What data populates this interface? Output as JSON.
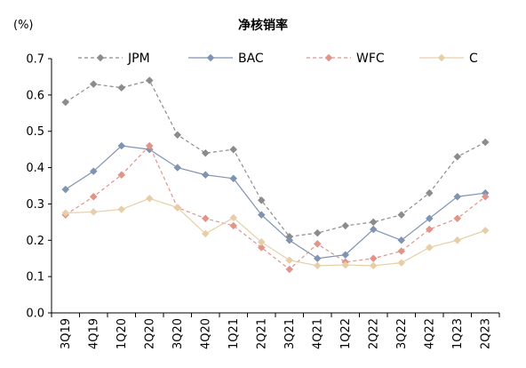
{
  "chart_data": {
    "type": "line",
    "title": "净核销率",
    "unit_label": "(%)",
    "xlabel": "",
    "ylabel": "",
    "ylim": [
      0.0,
      0.7
    ],
    "yticks": [
      "0.0",
      "0.1",
      "0.2",
      "0.3",
      "0.4",
      "0.5",
      "0.6",
      "0.7"
    ],
    "grid": false,
    "legend_position": "top",
    "categories": [
      "3Q19",
      "4Q19",
      "1Q20",
      "2Q20",
      "3Q20",
      "4Q20",
      "1Q21",
      "2Q21",
      "3Q21",
      "4Q21",
      "1Q22",
      "2Q22",
      "3Q22",
      "4Q22",
      "1Q23",
      "2Q23"
    ],
    "series": [
      {
        "name": "JPM",
        "color": "#8c8c8c",
        "dashed": true,
        "values": [
          0.58,
          0.63,
          0.62,
          0.64,
          0.49,
          0.44,
          0.45,
          0.31,
          0.21,
          0.22,
          0.24,
          0.25,
          0.27,
          0.33,
          0.43,
          0.47
        ]
      },
      {
        "name": "BAC",
        "color": "#7f93b2",
        "dashed": false,
        "values": [
          0.34,
          0.39,
          0.46,
          0.45,
          0.4,
          0.38,
          0.37,
          0.27,
          0.2,
          0.15,
          0.16,
          0.23,
          0.2,
          0.26,
          0.32,
          0.33
        ]
      },
      {
        "name": "WFC",
        "color": "#e0948a",
        "dashed": true,
        "values": [
          0.27,
          0.32,
          0.38,
          0.46,
          0.29,
          0.26,
          0.24,
          0.18,
          0.12,
          0.19,
          0.14,
          0.15,
          0.17,
          0.23,
          0.26,
          0.32
        ]
      },
      {
        "name": "C",
        "color": "#e6cfa8",
        "dashed": false,
        "values": [
          0.275,
          0.278,
          0.285,
          0.315,
          0.29,
          0.218,
          0.262,
          0.195,
          0.145,
          0.13,
          0.132,
          0.13,
          0.138,
          0.18,
          0.2,
          0.227
        ]
      }
    ]
  }
}
